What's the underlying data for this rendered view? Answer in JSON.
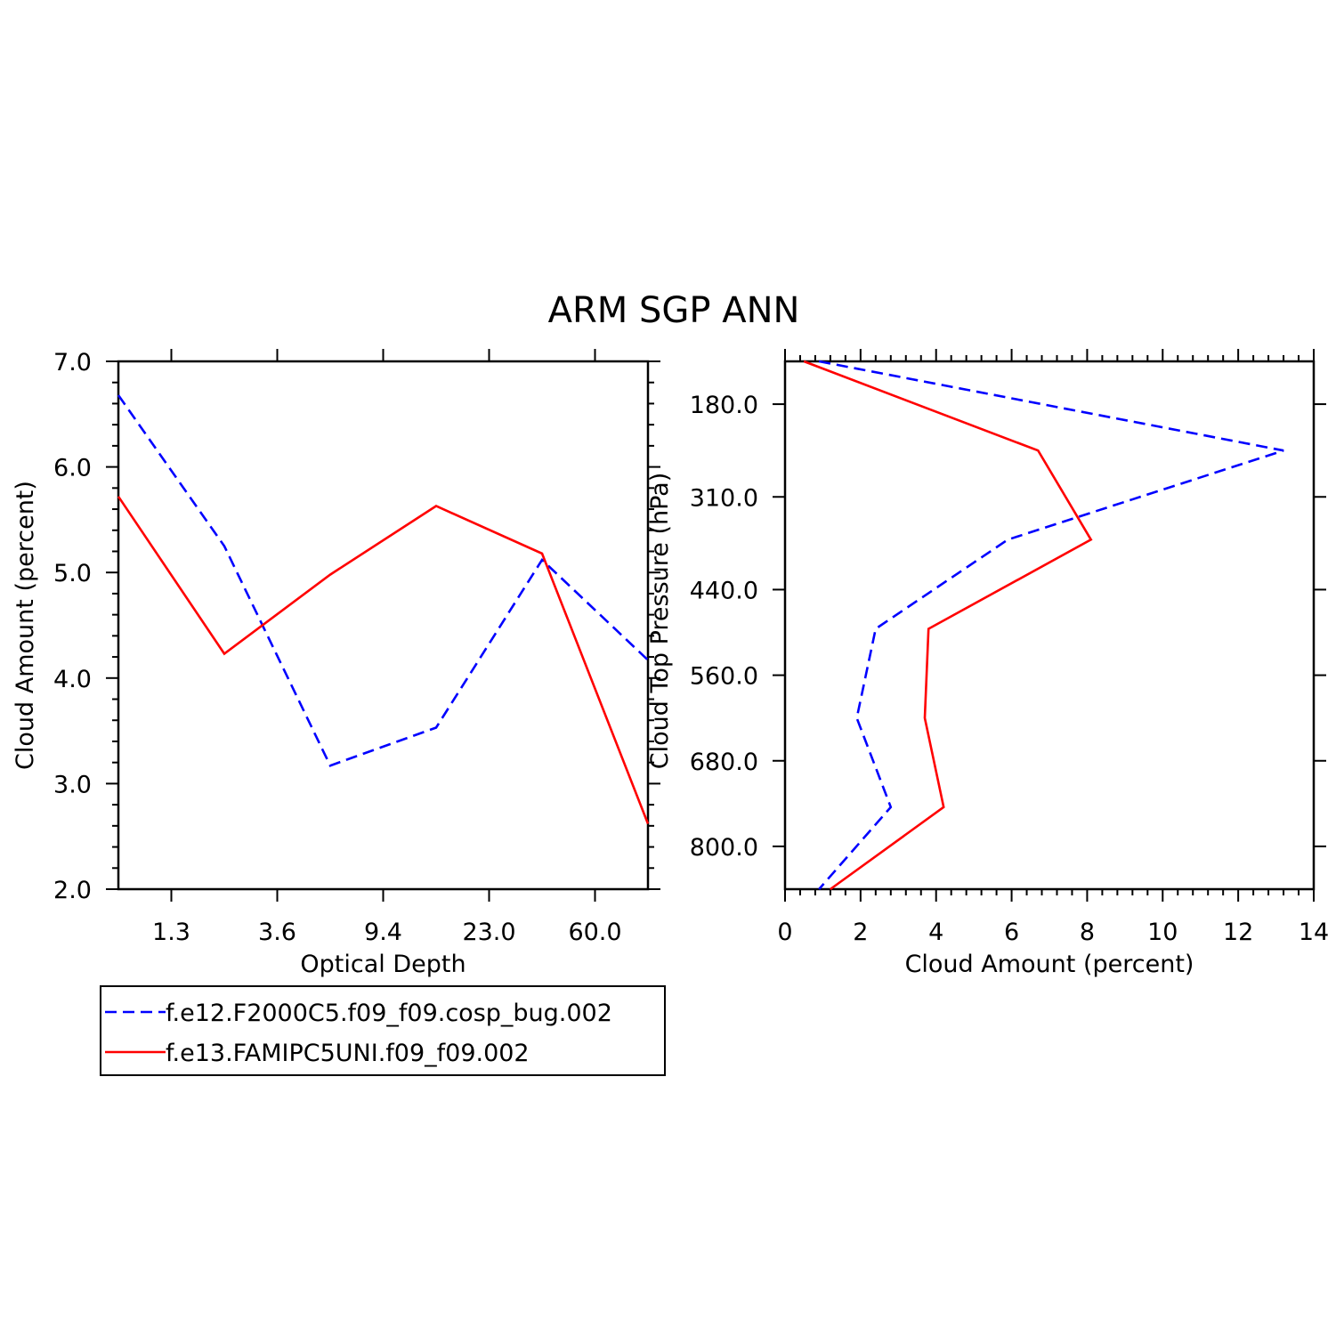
{
  "title": "ARM SGP ANN",
  "colors": {
    "blue": "#0000ff",
    "red": "#ff0000",
    "axis": "#000000"
  },
  "legend": {
    "placement": "bottom-left",
    "entries": [
      {
        "label": "f.e12.F2000C5.f09_f09.cosp_bug.002",
        "color": "#0000ff",
        "style": "dashed"
      },
      {
        "label": "f.e13.FAMIPC5UNI.f09_f09.002",
        "color": "#ff0000",
        "style": "solid"
      }
    ]
  },
  "chart_data": [
    {
      "type": "line",
      "xlabel": "Optical Depth",
      "ylabel": "Cloud Amount (percent)",
      "x_tick_labels": [
        "1.3",
        "3.6",
        "9.4",
        "23.0",
        "60.0"
      ],
      "x_categories": [
        0.3,
        1.3,
        2.4,
        3.6,
        6.5,
        9.4,
        16.2,
        23.0,
        41.5,
        60.0,
        80.0
      ],
      "xlim": [
        0.3,
        80.0
      ],
      "ylim": [
        2.0,
        7.0
      ],
      "y_ticks": [
        "2.0",
        "3.0",
        "4.0",
        "5.0",
        "6.0",
        "7.0"
      ],
      "series": [
        {
          "name": "f.e12.F2000C5.f09_f09.cosp_bug.002",
          "color": "#0000ff",
          "style": "dashed",
          "x": [
            0.3,
            2.4,
            6.5,
            16.2,
            41.5,
            80.0
          ],
          "y": [
            6.68,
            5.25,
            3.17,
            3.53,
            5.12,
            4.17
          ]
        },
        {
          "name": "f.e13.FAMIPC5UNI.f09_f09.002",
          "color": "#ff0000",
          "style": "solid",
          "x": [
            0.3,
            2.4,
            6.5,
            16.2,
            41.5,
            80.0
          ],
          "y": [
            5.72,
            4.23,
            4.98,
            5.63,
            5.18,
            2.62
          ]
        }
      ]
    },
    {
      "type": "line",
      "xlabel": "Cloud Amount (percent)",
      "ylabel": "Cloud Top Pressure (hPa)",
      "xlim": [
        0,
        14
      ],
      "x_ticks": [
        "0",
        "2",
        "4",
        "6",
        "8",
        "10",
        "12",
        "14"
      ],
      "ylim": [
        120,
        860
      ],
      "y_ticks": [
        "180.0",
        "310.0",
        "440.0",
        "560.0",
        "680.0",
        "800.0"
      ],
      "y_inverted": true,
      "series": [
        {
          "name": "f.e12.F2000C5.f09_f09.cosp_bug.002",
          "color": "#0000ff",
          "style": "dashed",
          "x": [
            0.9,
            13.2,
            5.9,
            2.4,
            1.9,
            2.8,
            0.9
          ],
          "y": [
            120,
            245,
            370,
            495,
            620,
            745,
            860
          ]
        },
        {
          "name": "f.e13.FAMIPC5UNI.f09_f09.002",
          "color": "#ff0000",
          "style": "solid",
          "x": [
            0.5,
            6.7,
            8.1,
            3.8,
            3.7,
            4.2,
            1.2
          ],
          "y": [
            120,
            245,
            370,
            495,
            620,
            745,
            860
          ]
        }
      ]
    }
  ]
}
